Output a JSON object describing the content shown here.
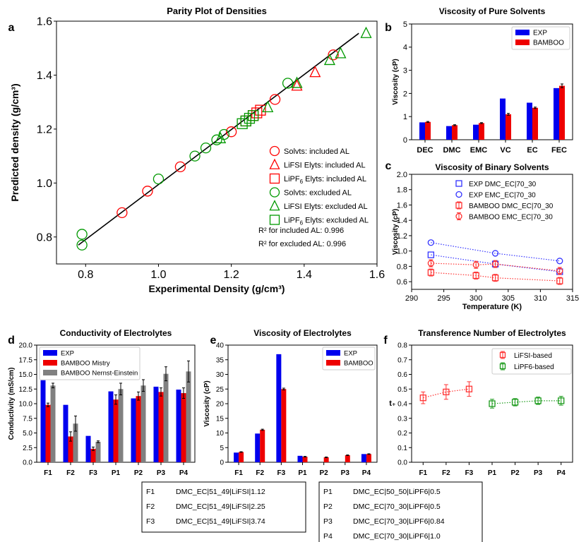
{
  "panel_letters": [
    "a",
    "b",
    "c",
    "d",
    "e",
    "f"
  ],
  "chart_data": [
    {
      "id": "a",
      "type": "scatter",
      "title": "Parity Plot of Densities",
      "xlabel": "Experimental Density (g/cm³)",
      "ylabel": "Predicted density (g/cm³)",
      "xlim": [
        0.72,
        1.6
      ],
      "ylim": [
        0.7,
        1.6
      ],
      "xticks": [
        0.8,
        1.0,
        1.2,
        1.4,
        1.6
      ],
      "yticks": [
        0.8,
        1.0,
        1.2,
        1.4,
        1.6
      ],
      "fit_line": [
        [
          0.78,
          0.77
        ],
        [
          1.55,
          1.555
        ]
      ],
      "series": [
        {
          "name": "Solvts: included AL",
          "marker": "circle",
          "color": "#ff0000",
          "x": [
            0.9,
            0.97,
            1.06,
            1.2,
            1.32,
            1.48
          ],
          "y": [
            0.89,
            0.97,
            1.06,
            1.19,
            1.31,
            1.475
          ]
        },
        {
          "name": "LiFSI Elyts: included AL",
          "marker": "triangle",
          "color": "#ff0000",
          "x": [
            1.38,
            1.43
          ],
          "y": [
            1.36,
            1.41
          ]
        },
        {
          "name": "LiPF6 Elyts: included AL",
          "marker": "square",
          "color": "#ff0000",
          "x": [
            1.24,
            1.26,
            1.27,
            1.28
          ],
          "y": [
            1.23,
            1.25,
            1.26,
            1.27
          ]
        },
        {
          "name": "Solvts: excluded AL",
          "marker": "circle",
          "color": "#009900",
          "x": [
            0.79,
            0.79,
            1.0,
            1.1,
            1.13,
            1.16,
            1.18,
            1.355
          ],
          "y": [
            0.77,
            0.81,
            1.015,
            1.1,
            1.13,
            1.16,
            1.18,
            1.37
          ]
        },
        {
          "name": "LiFSI Elyts: excluded AL",
          "marker": "triangle",
          "color": "#009900",
          "x": [
            1.17,
            1.3,
            1.38,
            1.47,
            1.5,
            1.57
          ],
          "y": [
            1.165,
            1.28,
            1.37,
            1.455,
            1.48,
            1.555
          ]
        },
        {
          "name": "LiPF6 Elyts: excluded AL",
          "marker": "square",
          "color": "#009900",
          "x": [
            1.23,
            1.24,
            1.25,
            1.26
          ],
          "y": [
            1.22,
            1.23,
            1.24,
            1.25
          ]
        }
      ],
      "legend_labels": [
        "Solvts: included AL",
        "LiFSI Elyts: included AL",
        "LiPF6 Elyts: included AL",
        "Solvts: excluded AL",
        "LiFSI Elyts: excluded AL",
        "LiPF6 Elyts: excluded AL"
      ],
      "annotations": [
        "R² for included AL: 0.996",
        "R² for excluded AL: 0.996"
      ]
    },
    {
      "id": "b",
      "type": "bar",
      "title": "Viscosity of Pure Solvents",
      "xlabel": "",
      "ylabel": "Viscosity (cP)",
      "ylim": [
        0,
        5
      ],
      "yticks": [
        0,
        1,
        2,
        3,
        4,
        5
      ],
      "categories": [
        "DEC",
        "DMC",
        "EMC",
        "VC",
        "EC",
        "FEC"
      ],
      "series": [
        {
          "name": "EXP",
          "color": "#0000ee",
          "values": [
            0.75,
            0.59,
            0.65,
            1.78,
            1.6,
            2.23
          ],
          "errors": [
            0,
            0,
            0,
            0,
            0,
            0
          ]
        },
        {
          "name": "BAMBOO",
          "color": "#ee0000",
          "values": [
            0.77,
            0.63,
            0.72,
            1.1,
            1.38,
            2.33
          ],
          "errors": [
            0.02,
            0.02,
            0.02,
            0.04,
            0.03,
            0.08
          ]
        }
      ],
      "legend_labels": [
        "EXP",
        "BAMBOO"
      ]
    },
    {
      "id": "c",
      "type": "line",
      "title": "Viscosity of Binary Solvents",
      "xlabel": "Temperature (K)",
      "ylabel": "Viscosity (cP)",
      "xlim": [
        290,
        315
      ],
      "ylim": [
        0.5,
        2.0
      ],
      "xticks": [
        290,
        295,
        300,
        305,
        310,
        315
      ],
      "yticks": [
        0.6,
        0.8,
        1.0,
        1.2,
        1.4,
        1.6,
        1.8,
        2.0
      ],
      "series": [
        {
          "name": "EXP DMC_EC|70_30",
          "marker": "square",
          "color": "#3333ff",
          "x": [
            293,
            303,
            313
          ],
          "y": [
            0.95,
            0.83,
            0.73
          ]
        },
        {
          "name": "EXP EMC_EC|70_30",
          "marker": "circle",
          "color": "#3333ff",
          "x": [
            293,
            303,
            313
          ],
          "y": [
            1.11,
            0.97,
            0.87
          ]
        },
        {
          "name": "BAMBOO DMC_EC|70_30",
          "marker": "square",
          "color": "#ff3333",
          "x": [
            293,
            300,
            303,
            313
          ],
          "y": [
            0.72,
            0.68,
            0.65,
            0.61
          ]
        },
        {
          "name": "BAMBOO EMC_EC|70_30",
          "marker": "circle",
          "color": "#ff3333",
          "x": [
            293,
            300,
            303,
            313
          ],
          "y": [
            0.84,
            0.82,
            0.83,
            0.74
          ]
        }
      ],
      "legend_labels": [
        "EXP DMC_EC|70_30",
        "EXP EMC_EC|70_30",
        "BAMBOO DMC_EC|70_30",
        "BAMBOO EMC_EC|70_30"
      ]
    },
    {
      "id": "d",
      "type": "bar",
      "title": "Conductivity of Electrolytes",
      "xlabel": "",
      "ylabel": "Conductivity (mS/cm)",
      "ylim": [
        0,
        20
      ],
      "yticks": [
        0,
        2.5,
        5.0,
        7.5,
        10.0,
        12.5,
        15.0,
        17.5,
        20.0
      ],
      "ytick_labels": [
        "0.0",
        "2.5",
        "5.0",
        "7.5",
        "10.0",
        "12.5",
        "15.0",
        "17.5",
        "20.0"
      ],
      "categories": [
        "F1",
        "F2",
        "F3",
        "P1",
        "P2",
        "P3",
        "P4"
      ],
      "series": [
        {
          "name": "EXP",
          "color": "#0000ee",
          "values": [
            14.0,
            9.8,
            4.5,
            12.1,
            10.9,
            12.9,
            12.4
          ],
          "errors": [
            0,
            0,
            0,
            0,
            0,
            0,
            0
          ]
        },
        {
          "name": "BAMBOO Mistry",
          "color": "#ee0000",
          "values": [
            9.8,
            4.4,
            2.3,
            10.7,
            11.3,
            12.0,
            11.8
          ],
          "errors": [
            0.3,
            0.8,
            0.3,
            0.8,
            0.7,
            0.7,
            0.9
          ]
        },
        {
          "name": "BAMBOO Nernst-Einstein",
          "color": "#808080",
          "values": [
            13.1,
            6.6,
            3.5,
            12.5,
            13.1,
            15.1,
            15.5
          ],
          "errors": [
            0.4,
            1.3,
            0.15,
            1.0,
            1.0,
            1.2,
            1.8
          ]
        }
      ],
      "legend_labels": [
        "EXP",
        "BAMBOO Mistry",
        "BAMBOO Nernst-Einstein"
      ]
    },
    {
      "id": "e",
      "type": "bar",
      "title": "Viscosity of Electrolytes",
      "xlabel": "",
      "ylabel": "Viscosity (cP)",
      "ylim": [
        0,
        40
      ],
      "yticks": [
        0,
        5,
        10,
        15,
        20,
        25,
        30,
        35,
        40
      ],
      "categories": [
        "F1",
        "F2",
        "F3",
        "P1",
        "P2",
        "P3",
        "P4"
      ],
      "series": [
        {
          "name": "EXP",
          "color": "#0000ee",
          "values": [
            3.3,
            9.8,
            36.9,
            2.2,
            0,
            0,
            2.8
          ],
          "errors": [
            0,
            0,
            0,
            0,
            0,
            0,
            0
          ]
        },
        {
          "name": "BAMBOO",
          "color": "#ee0000",
          "values": [
            3.5,
            11.1,
            25.0,
            1.9,
            1.7,
            2.4,
            2.8
          ],
          "errors": [
            0.1,
            0.2,
            0.3,
            0.1,
            0.1,
            0.1,
            0.1
          ]
        }
      ],
      "legend_labels": [
        "EXP",
        "BAMBOO"
      ]
    },
    {
      "id": "f",
      "type": "line",
      "title": "Transference Number of Electrolytes",
      "xlabel": "",
      "ylabel": "t₊",
      "ylim": [
        0,
        0.8
      ],
      "yticks": [
        0,
        0.1,
        0.2,
        0.3,
        0.4,
        0.5,
        0.6,
        0.7,
        0.8
      ],
      "ytick_labels": [
        "0.0",
        "0.1",
        "0.2",
        "0.3",
        "0.4",
        "0.5",
        "0.6",
        "0.7",
        "0.8"
      ],
      "categories": [
        "F1",
        "F2",
        "F3",
        "P1",
        "P2",
        "P3",
        "P4"
      ],
      "series": [
        {
          "name": "LiFSI-based",
          "marker": "square",
          "color": "#ff3333",
          "x": [
            "F1",
            "F2",
            "F3"
          ],
          "y": [
            0.44,
            0.48,
            0.5
          ],
          "errors": [
            0.04,
            0.05,
            0.05
          ]
        },
        {
          "name": "LiPF6-based",
          "marker": "square",
          "color": "#1a9a1a",
          "x": [
            "P1",
            "P2",
            "P3",
            "P4"
          ],
          "y": [
            0.4,
            0.41,
            0.42,
            0.42
          ],
          "errors": [
            0.03,
            0.025,
            0.025,
            0.03
          ]
        }
      ],
      "legend_labels": [
        "LiFSI-based",
        "LiPF6-based"
      ]
    }
  ],
  "composition_table_left": [
    {
      "id": "F1",
      "desc": "DMC_EC|51_49|LiFSI|1.12"
    },
    {
      "id": "F2",
      "desc": "DMC_EC|51_49|LiFSI|2.25"
    },
    {
      "id": "F3",
      "desc": "DMC_EC|51_49|LiFSI|3.74"
    }
  ],
  "composition_table_right": [
    {
      "id": "P1",
      "desc": "DMC_EC|50_50|LiPF6|0.5"
    },
    {
      "id": "P2",
      "desc": "DMC_EC|70_30|LiPF6|0.5"
    },
    {
      "id": "P3",
      "desc": "DMC_EC|70_30|LiPF6|0.84"
    },
    {
      "id": "P4",
      "desc": "DMC_EC|70_30|LiPF6|1.0"
    }
  ]
}
